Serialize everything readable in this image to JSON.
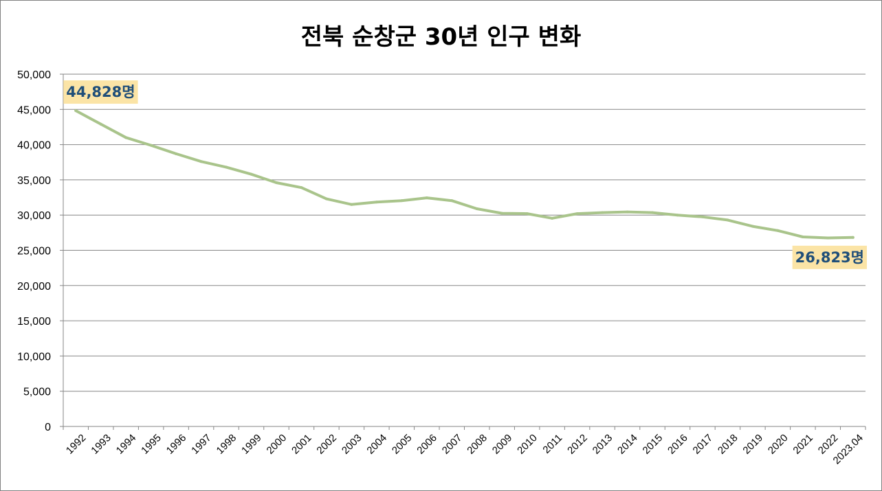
{
  "chart_data": {
    "type": "line",
    "title": "전북 순창군 30년 인구 변화",
    "xlabel": "",
    "ylabel": "",
    "ylim": [
      0,
      50000
    ],
    "y_ticks": [
      "0",
      "5,000",
      "10,000",
      "15,000",
      "20,000",
      "25,000",
      "30,000",
      "35,000",
      "40,000",
      "45,000",
      "50,000"
    ],
    "grid": true,
    "legend": "none",
    "categories": [
      "1992",
      "1993",
      "1994",
      "1995",
      "1996",
      "1997",
      "1998",
      "1999",
      "2000",
      "2001",
      "2002",
      "2003",
      "2004",
      "2005",
      "2006",
      "2007",
      "2008",
      "2009",
      "2010",
      "2011",
      "2012",
      "2013",
      "2014",
      "2015",
      "2016",
      "2017",
      "2018",
      "2019",
      "2020",
      "2021",
      "2022",
      "2023.04"
    ],
    "series": [
      {
        "color": "#a9c48b",
        "values": [
          44828,
          42900,
          41000,
          39900,
          38700,
          37600,
          36800,
          35800,
          34600,
          33900,
          32300,
          31500,
          31850,
          32050,
          32450,
          32050,
          30900,
          30250,
          30200,
          29550,
          30200,
          30350,
          30450,
          30350,
          30000,
          29750,
          29300,
          28400,
          27800,
          26900,
          26750,
          26823
        ]
      }
    ],
    "annotations": [
      {
        "text": "44,828명",
        "point_index": 0
      },
      {
        "text": "26,823명",
        "point_index": 31
      }
    ],
    "annotation_style": {
      "background": "#fbe4a6",
      "text_color": "#1f4e79"
    },
    "gridline_color": "#868686"
  }
}
